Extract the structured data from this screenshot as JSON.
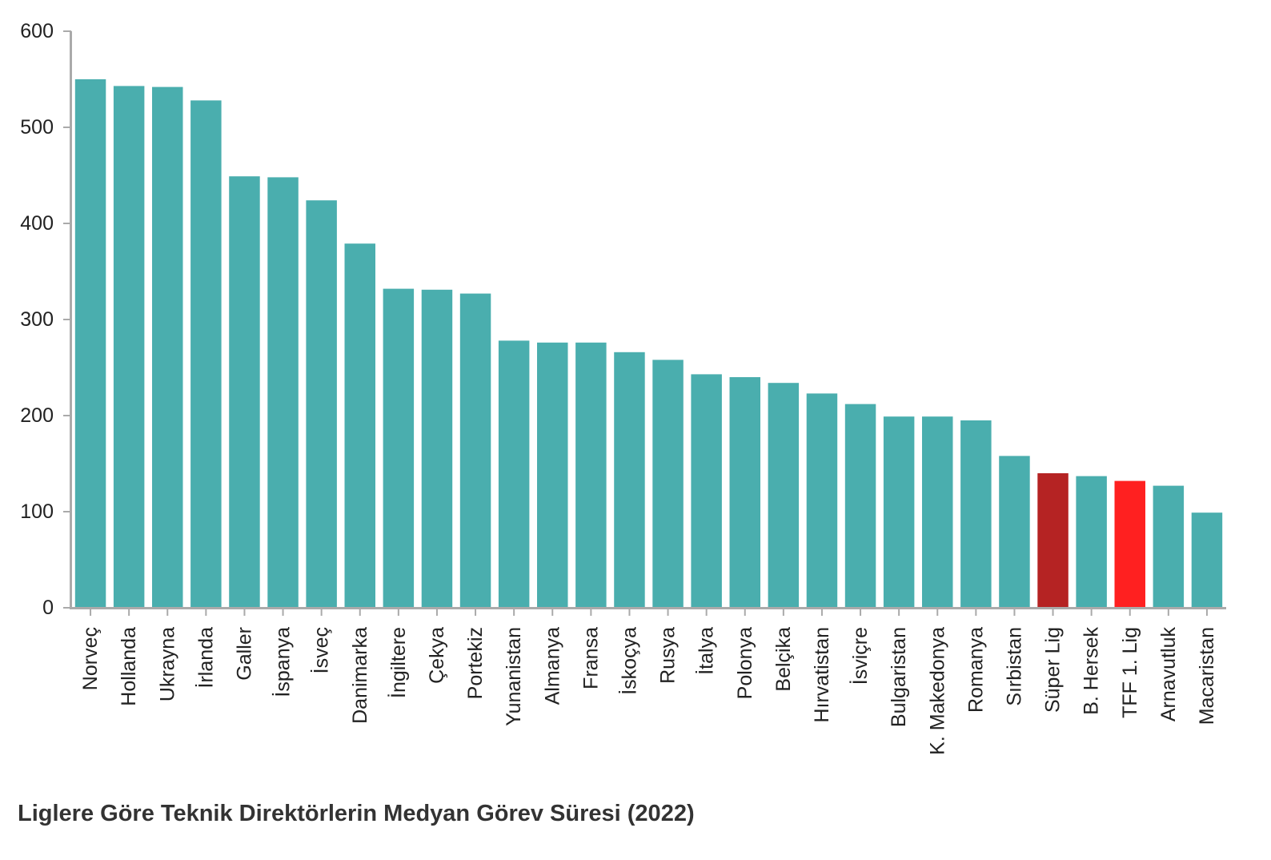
{
  "chart_data": {
    "type": "bar",
    "title": "Liglere Göre Teknik Direktörlerin Medyan Görev Süresi (2022)",
    "xlabel": "",
    "ylabel": "",
    "ylim": [
      0,
      600
    ],
    "yticks": [
      0,
      100,
      200,
      300,
      400,
      500,
      600
    ],
    "grid": false,
    "categories": [
      "Norveç",
      "Hollanda",
      "Ukrayna",
      "İrlanda",
      "Galler",
      "İspanya",
      "İsveç",
      "Danimarka",
      "İngiltere",
      "Çekya",
      "Portekiz",
      "Yunanistan",
      "Almanya",
      "Fransa",
      "İskoçya",
      "Rusya",
      "İtalya",
      "Polonya",
      "Belçika",
      "Hırvatistan",
      "İsviçre",
      "Bulgaristan",
      "K. Makedonya",
      "Romanya",
      "Sırbistan",
      "Süper Lig",
      "B. Hersek",
      "TFF 1. Lig",
      "Arnavutluk",
      "Macaristan"
    ],
    "values": [
      550,
      543,
      542,
      528,
      449,
      448,
      424,
      379,
      332,
      331,
      327,
      278,
      276,
      276,
      266,
      258,
      243,
      240,
      234,
      223,
      212,
      199,
      199,
      195,
      158,
      140,
      137,
      132,
      127,
      99
    ],
    "colors": {
      "default": "#4aaeae",
      "Süper Lig": "#b52323",
      "TFF 1. Lig": "#ff2020",
      "axis": "#aaaaaa"
    }
  }
}
